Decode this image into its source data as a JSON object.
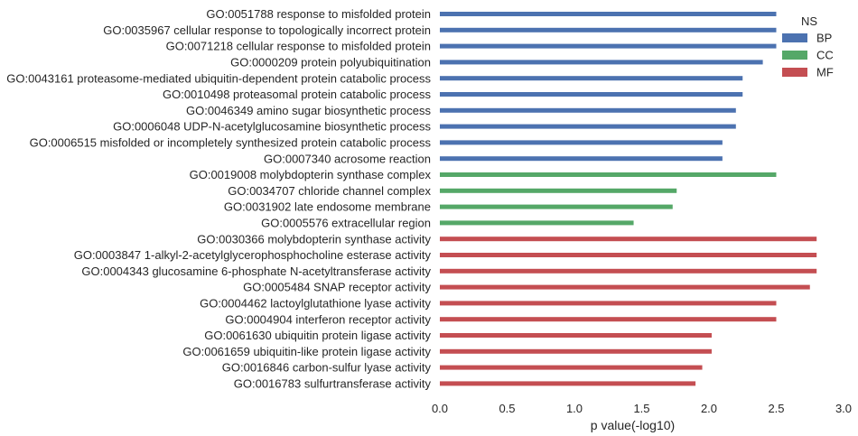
{
  "chart_data": {
    "type": "bar",
    "orientation": "horizontal",
    "xlabel": "p value(-log10)",
    "xlim": [
      0,
      3.0
    ],
    "xticks": [
      "0.0",
      "0.5",
      "1.0",
      "1.5",
      "2.0",
      "2.5",
      "3.0"
    ],
    "grid": false,
    "legend": {
      "title": "NS",
      "placement": "top-right",
      "entries": [
        {
          "name": "BP",
          "color": "#4c72b0"
        },
        {
          "name": "CC",
          "color": "#55a868"
        },
        {
          "name": "MF",
          "color": "#c44e52"
        }
      ]
    },
    "bars": [
      {
        "label": "GO:0051788 response to misfolded protein",
        "value": 2.5,
        "ns": "BP"
      },
      {
        "label": "GO:0035967 cellular response to topologically incorrect protein",
        "value": 2.5,
        "ns": "BP"
      },
      {
        "label": "GO:0071218 cellular response to misfolded protein",
        "value": 2.5,
        "ns": "BP"
      },
      {
        "label": "GO:0000209 protein polyubiquitination",
        "value": 2.4,
        "ns": "BP"
      },
      {
        "label": "GO:0043161 proteasome-mediated ubiquitin-dependent protein catabolic process",
        "value": 2.25,
        "ns": "BP"
      },
      {
        "label": "GO:0010498 proteasomal protein catabolic process",
        "value": 2.25,
        "ns": "BP"
      },
      {
        "label": "GO:0046349 amino sugar biosynthetic process",
        "value": 2.2,
        "ns": "BP"
      },
      {
        "label": "GO:0006048 UDP-N-acetylglucosamine biosynthetic process",
        "value": 2.2,
        "ns": "BP"
      },
      {
        "label": "GO:0006515 misfolded or incompletely synthesized protein catabolic process",
        "value": 2.1,
        "ns": "BP"
      },
      {
        "label": "GO:0007340 acrosome reaction",
        "value": 2.1,
        "ns": "BP"
      },
      {
        "label": "GO:0019008 molybdopterin synthase complex",
        "value": 2.5,
        "ns": "CC"
      },
      {
        "label": "GO:0034707 chloride channel complex",
        "value": 1.76,
        "ns": "CC"
      },
      {
        "label": "GO:0031902 late endosome membrane",
        "value": 1.73,
        "ns": "CC"
      },
      {
        "label": "GO:0005576 extracellular region",
        "value": 1.44,
        "ns": "CC"
      },
      {
        "label": "GO:0030366 molybdopterin synthase activity",
        "value": 2.8,
        "ns": "MF"
      },
      {
        "label": "GO:0003847 1-alkyl-2-acetylglycerophosphocholine esterase activity",
        "value": 2.8,
        "ns": "MF"
      },
      {
        "label": "GO:0004343 glucosamine 6-phosphate N-acetyltransferase activity",
        "value": 2.8,
        "ns": "MF"
      },
      {
        "label": "GO:0005484 SNAP receptor activity",
        "value": 2.75,
        "ns": "MF"
      },
      {
        "label": "GO:0004462 lactoylglutathione lyase activity",
        "value": 2.5,
        "ns": "MF"
      },
      {
        "label": "GO:0004904 interferon receptor activity",
        "value": 2.5,
        "ns": "MF"
      },
      {
        "label": "GO:0061630 ubiquitin protein ligase activity",
        "value": 2.02,
        "ns": "MF"
      },
      {
        "label": "GO:0061659 ubiquitin-like protein ligase activity",
        "value": 2.02,
        "ns": "MF"
      },
      {
        "label": "GO:0016846 carbon-sulfur lyase activity",
        "value": 1.95,
        "ns": "MF"
      },
      {
        "label": "GO:0016783 sulfurtransferase activity",
        "value": 1.9,
        "ns": "MF"
      }
    ]
  }
}
